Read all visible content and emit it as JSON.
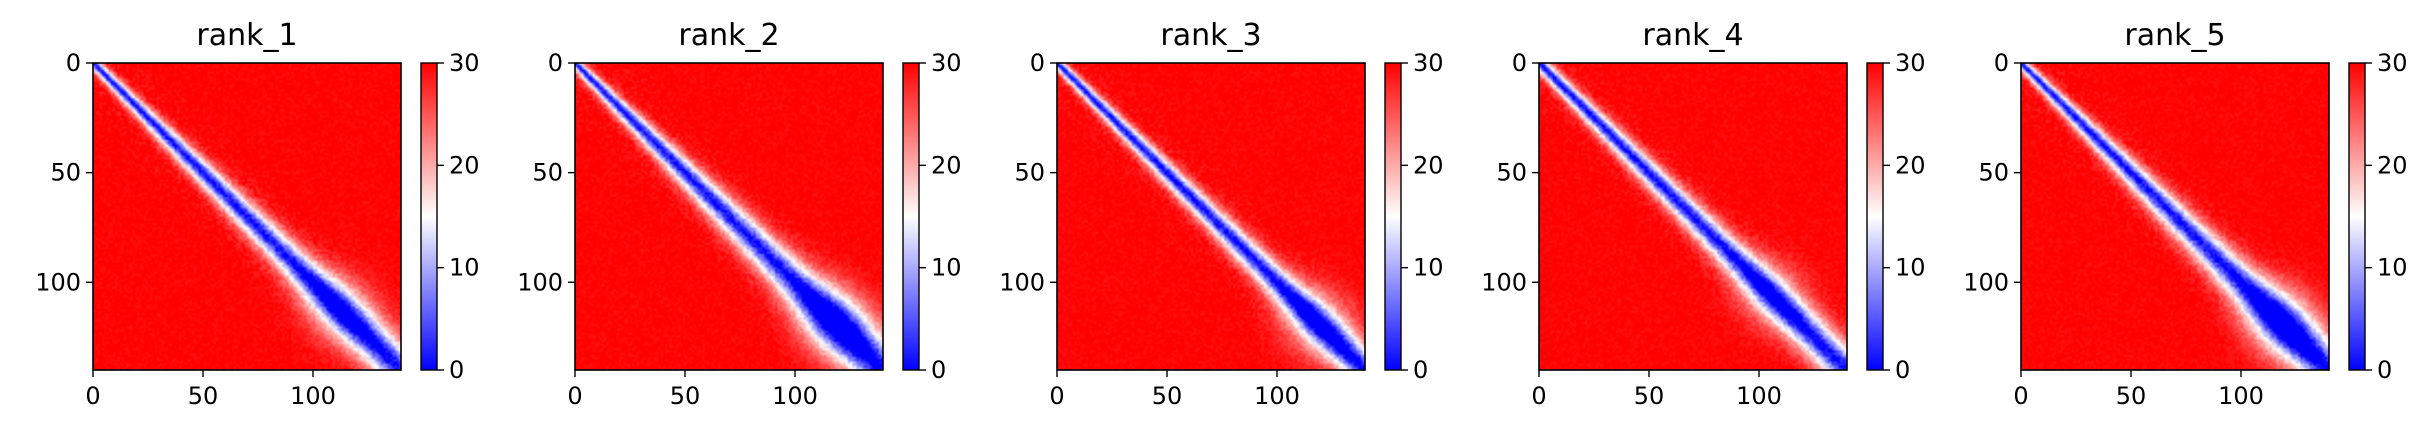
{
  "chart_data": [
    {
      "type": "heatmap",
      "title": "rank_1",
      "xlim": [
        0,
        140
      ],
      "ylim": [
        140,
        0
      ],
      "xticks": [
        0,
        50,
        100
      ],
      "yticks": [
        0,
        50,
        100
      ],
      "colorbar": {
        "min": 0,
        "max": 30,
        "ticks": [
          0,
          10,
          20,
          30
        ],
        "colormap": "bwr",
        "low_color": "#0000ff",
        "mid_color": "#ffffff",
        "high_color": "#ff0000"
      },
      "diagonal_band": {
        "width_at_start": 3,
        "width_at_end": 12,
        "blob_center": 112,
        "blob_strength": 0.6
      }
    },
    {
      "type": "heatmap",
      "title": "rank_2",
      "xlim": [
        0,
        140
      ],
      "ylim": [
        140,
        0
      ],
      "xticks": [
        0,
        50,
        100
      ],
      "yticks": [
        0,
        50,
        100
      ],
      "colorbar": {
        "min": 0,
        "max": 30,
        "ticks": [
          0,
          10,
          20,
          30
        ],
        "colormap": "bwr",
        "low_color": "#0000ff",
        "mid_color": "#ffffff",
        "high_color": "#ff0000"
      },
      "diagonal_band": {
        "width_at_start": 3,
        "width_at_end": 14,
        "blob_center": 118,
        "blob_strength": 0.9
      }
    },
    {
      "type": "heatmap",
      "title": "rank_3",
      "xlim": [
        0,
        140
      ],
      "ylim": [
        140,
        0
      ],
      "xticks": [
        0,
        50,
        100
      ],
      "yticks": [
        0,
        50,
        100
      ],
      "colorbar": {
        "min": 0,
        "max": 30,
        "ticks": [
          0,
          10,
          20,
          30
        ],
        "colormap": "bwr",
        "low_color": "#0000ff",
        "mid_color": "#ffffff",
        "high_color": "#ff0000"
      },
      "diagonal_band": {
        "width_at_start": 3,
        "width_at_end": 10,
        "blob_center": 118,
        "blob_strength": 0.7
      }
    },
    {
      "type": "heatmap",
      "title": "rank_4",
      "xlim": [
        0,
        140
      ],
      "ylim": [
        140,
        0
      ],
      "xticks": [
        0,
        50,
        100
      ],
      "yticks": [
        0,
        50,
        100
      ],
      "colorbar": {
        "min": 0,
        "max": 30,
        "ticks": [
          0,
          10,
          20,
          30
        ],
        "colormap": "bwr",
        "low_color": "#0000ff",
        "mid_color": "#ffffff",
        "high_color": "#ff0000"
      },
      "diagonal_band": {
        "width_at_start": 4,
        "width_at_end": 11,
        "blob_center": 105,
        "blob_strength": 0.5
      }
    },
    {
      "type": "heatmap",
      "title": "rank_5",
      "xlim": [
        0,
        140
      ],
      "ylim": [
        140,
        0
      ],
      "xticks": [
        0,
        50,
        100
      ],
      "yticks": [
        0,
        50,
        100
      ],
      "colorbar": {
        "min": 0,
        "max": 30,
        "ticks": [
          0,
          10,
          20,
          30
        ],
        "colormap": "bwr",
        "low_color": "#0000ff",
        "mid_color": "#ffffff",
        "high_color": "#ff0000"
      },
      "diagonal_band": {
        "width_at_start": 3,
        "width_at_end": 13,
        "blob_center": 118,
        "blob_strength": 0.9
      }
    }
  ]
}
